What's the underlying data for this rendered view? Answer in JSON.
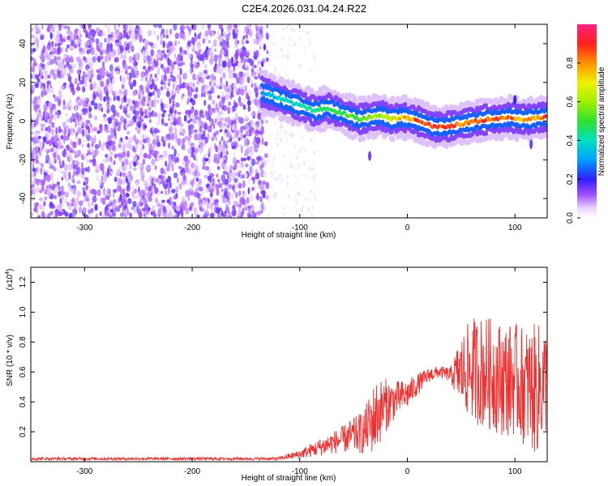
{
  "title": "C2E4.2026.031.04.24.R22",
  "colors": {
    "series_line": "#ee3030",
    "noise_purple": "#7a2ee0",
    "axis": "#000000",
    "background": "#ffffff"
  },
  "chart_data": [
    {
      "type": "heatmap",
      "title": "C2E4.2026.031.04.24.R22",
      "xlabel": "Height of straight line (km)",
      "ylabel": "Frequency (Hz)",
      "xlim": [
        -350,
        130
      ],
      "ylim": [
        -50,
        50
      ],
      "xticks": [
        -300,
        -200,
        -100,
        0,
        100
      ],
      "xticklabels": [
        "-300",
        "-200",
        "-100",
        "0",
        "100"
      ],
      "yticks": [
        -40,
        -20,
        0,
        20,
        40
      ],
      "yticklabels": [
        "-40",
        "-20",
        "0",
        "20",
        "40"
      ],
      "noise_region_x": [
        -350,
        -130
      ],
      "ridge": {
        "x": [
          -135,
          -125,
          -115,
          -105,
          -95,
          -85,
          -75,
          -65,
          -55,
          -45,
          -35,
          -25,
          -15,
          -5,
          5,
          15,
          25,
          35,
          45,
          55,
          65,
          75,
          85,
          95,
          105,
          115,
          125
        ],
        "freq": [
          15,
          13,
          11,
          9,
          7,
          5,
          7,
          5,
          3,
          1,
          2,
          3,
          1,
          2,
          1,
          -1,
          -3,
          -3,
          -2,
          -1,
          0,
          1,
          1,
          2,
          1,
          1,
          2
        ],
        "amplitude": [
          0.3,
          0.35,
          0.4,
          0.4,
          0.45,
          0.45,
          0.5,
          0.5,
          0.55,
          0.55,
          0.6,
          0.6,
          0.7,
          0.8,
          0.85,
          0.9,
          0.95,
          0.9,
          0.9,
          0.85,
          0.85,
          0.9,
          0.9,
          0.9,
          0.85,
          0.85,
          0.9
        ]
      },
      "colorbar": {
        "label": "Normalized spectral amplitude",
        "range": [
          0.0,
          1.0
        ],
        "ticks": [
          0.0,
          0.2,
          0.4,
          0.6,
          0.8
        ],
        "ticklabels": [
          "0.0",
          "0.2",
          "0.4",
          "0.6",
          "0.8"
        ]
      }
    },
    {
      "type": "line",
      "xlabel": "Height of straight line (km)",
      "ylabel": "SNR (10 * v/v)",
      "scale_label": "(x10",
      "scale_exponent": "4",
      "scale_close": ")",
      "xlim": [
        -350,
        130
      ],
      "ylim": [
        0,
        1.3
      ],
      "xticks": [
        -300,
        -200,
        -100,
        0,
        100
      ],
      "xticklabels": [
        "-300",
        "-200",
        "-100",
        "0",
        "100"
      ],
      "yticks": [
        0.2,
        0.4,
        0.6,
        0.8,
        1.0,
        1.2
      ],
      "yticklabels": [
        "0.2",
        "0.4",
        "0.6",
        "0.8",
        "1.0",
        "1.2"
      ],
      "series": [
        {
          "name": "SNR",
          "color": "#ee3030",
          "envelope_x": [
            -350,
            -120,
            -100,
            -80,
            -60,
            -40,
            -30,
            -20,
            -10,
            0,
            10,
            20,
            30,
            40,
            50,
            60,
            70,
            80,
            90,
            100,
            110,
            120,
            130
          ],
          "envelope_mean": [
            0.02,
            0.02,
            0.05,
            0.1,
            0.15,
            0.2,
            0.3,
            0.38,
            0.42,
            0.45,
            0.52,
            0.58,
            0.6,
            0.58,
            0.6,
            0.62,
            0.6,
            0.58,
            0.55,
            0.55,
            0.5,
            0.48,
            0.55
          ],
          "envelope_spread": [
            0.01,
            0.01,
            0.03,
            0.06,
            0.09,
            0.15,
            0.25,
            0.18,
            0.12,
            0.1,
            0.07,
            0.05,
            0.04,
            0.05,
            0.25,
            0.35,
            0.38,
            0.38,
            0.38,
            0.38,
            0.4,
            0.45,
            0.35
          ]
        }
      ]
    }
  ]
}
